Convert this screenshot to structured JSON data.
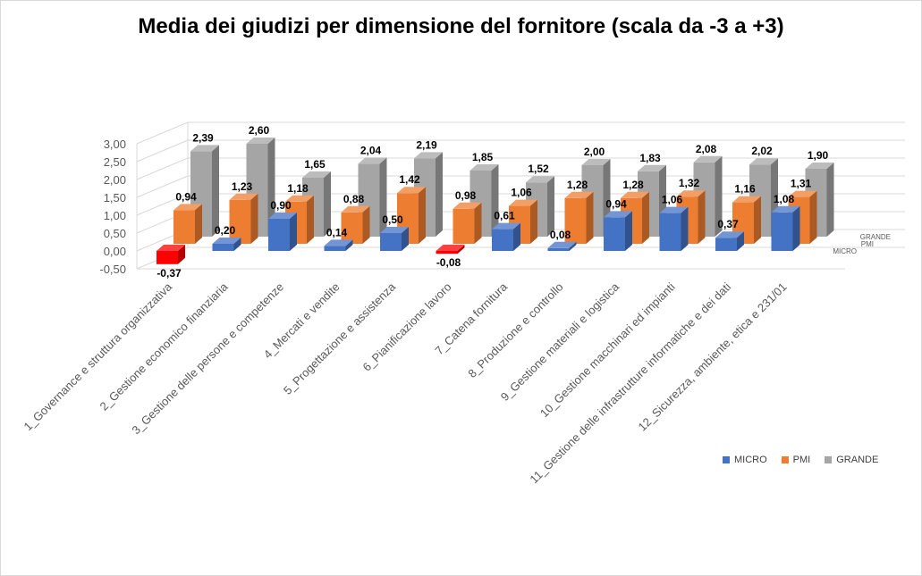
{
  "chart_data": {
    "type": "bar",
    "title": "Media dei giudizi per dimensione del fornitore (scala da -3 a +3)",
    "categories": [
      "1_Governance e struttura organizzativa",
      "2_Gestione economico finanziaria",
      "3_Gestione delle persone e competenze",
      "4_Mercati e vendite",
      "5_Progettazione e assistenza",
      "6_Pianificazione lavoro",
      "7_Catena fornitura",
      "8_Produzione e controllo",
      "9_Gestione materiali e logistica",
      "10_Gestione macchinari ed impianti",
      "11_Gestione delle infrastrutture informatiche e dei dati",
      "12_Sicurezza, ambiente, etica e 231/01"
    ],
    "series": [
      {
        "name": "MICRO",
        "color": "#4472c4",
        "values": [
          -0.37,
          0.2,
          0.9,
          0.14,
          0.5,
          -0.08,
          0.61,
          0.08,
          0.94,
          1.06,
          0.37,
          1.08
        ],
        "labels": [
          "-0,37",
          "0,20",
          "0,90",
          "0,14",
          "0,50",
          "-0,08",
          "0,61",
          "0,08",
          "0,94",
          "1,06",
          "0,37",
          "1,08"
        ]
      },
      {
        "name": "PMI",
        "color": "#ed7d31",
        "values": [
          0.94,
          1.23,
          1.18,
          0.88,
          1.42,
          0.98,
          1.06,
          1.28,
          1.28,
          1.32,
          1.16,
          1.31
        ],
        "labels": [
          "0,94",
          "1,23",
          "1,18",
          "0,88",
          "1,42",
          "0,98",
          "1,06",
          "1,28",
          "1,28",
          "1,32",
          "1,16",
          "1,31"
        ]
      },
      {
        "name": "GRANDE",
        "color": "#a5a5a5",
        "values": [
          2.39,
          2.6,
          1.65,
          2.04,
          2.19,
          1.85,
          1.52,
          2.0,
          1.83,
          2.08,
          2.02,
          1.9
        ],
        "labels": [
          "2,39",
          "2,60",
          "1,65",
          "2,04",
          "2,19",
          "1,85",
          "1,52",
          "2,00",
          "1,83",
          "2,08",
          "2,02",
          "1,90"
        ]
      }
    ],
    "negative_color": "#ff0000",
    "y_ticks": [
      "3,00",
      "2,50",
      "2,00",
      "1,50",
      "1,00",
      "0,50",
      "0,00",
      "-0,50"
    ],
    "ylim": [
      -0.5,
      3.0
    ],
    "legend": {
      "position": "bottom-right",
      "items": [
        "MICRO",
        "PMI",
        "GRANDE"
      ]
    },
    "depth_labels": [
      "MICRO",
      "PMI",
      "GRANDE"
    ],
    "grid": true
  }
}
